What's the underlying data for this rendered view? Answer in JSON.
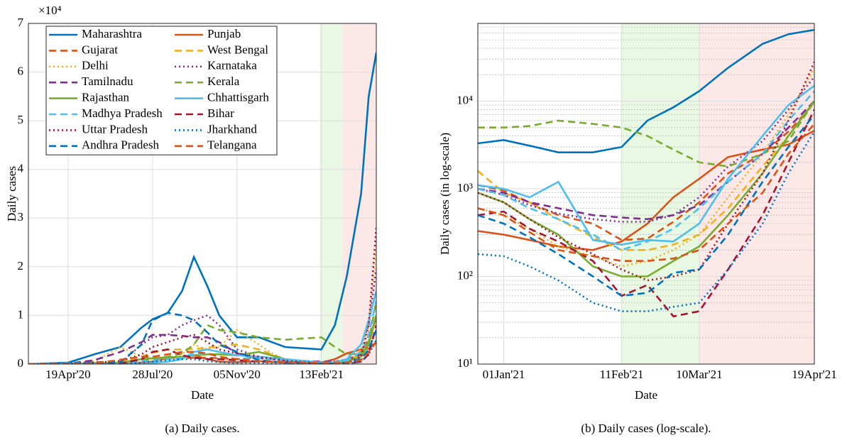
{
  "chart_data": [
    {
      "type": "line",
      "caption": "(a) Daily cases.",
      "x_label": "Date",
      "y_label": "Daily cases",
      "y_multiplier": "×10⁴",
      "x": [
        "2020-03-03",
        "2020-04-19",
        "2020-05-20",
        "2020-06-20",
        "2020-07-15",
        "2020-07-28",
        "2020-08-15",
        "2020-09-01",
        "2020-09-15",
        "2020-10-01",
        "2020-10-15",
        "2020-11-05",
        "2020-12-01",
        "2021-01-01",
        "2021-02-13",
        "2021-03-01",
        "2021-03-15",
        "2021-04-01",
        "2021-04-10",
        "2021-04-19"
      ],
      "xlim": [
        "2020-03-03",
        "2021-04-19"
      ],
      "xticks": [
        {
          "value": "2020-04-19",
          "label": "19Apr'20"
        },
        {
          "value": "2020-07-28",
          "label": "28Jul'20"
        },
        {
          "value": "2020-11-05",
          "label": "05Nov'20"
        },
        {
          "value": "2021-02-13",
          "label": "13Feb'21"
        }
      ],
      "ylim": [
        0,
        7
      ],
      "yticks": [
        0,
        1,
        2,
        3,
        4,
        5,
        6,
        7
      ],
      "grid": true,
      "log_y": false,
      "legend": "upper left",
      "shaded_regions": [
        {
          "start": "2021-02-11",
          "end": "2021-03-10",
          "color": "#e8f8e2"
        },
        {
          "start": "2021-03-10",
          "end": "2021-04-19",
          "color": "#fde8e8"
        }
      ],
      "series": [
        {
          "name": "Maharashtra",
          "color": "#0072BD",
          "dash": "solid",
          "values": [
            0,
            0.03,
            0.2,
            0.35,
            0.75,
            0.92,
            1.05,
            1.5,
            2.2,
            1.6,
            1.0,
            0.55,
            0.55,
            0.35,
            0.3,
            0.8,
            1.8,
            3.5,
            5.5,
            6.4
          ]
        },
        {
          "name": "Punjab",
          "color": "#D95319",
          "dash": "solid",
          "values": [
            0,
            0,
            0.01,
            0.01,
            0.03,
            0.05,
            0.12,
            0.15,
            0.18,
            0.1,
            0.05,
            0.04,
            0.06,
            0.03,
            0.03,
            0.1,
            0.22,
            0.3,
            0.32,
            0.45
          ]
        },
        {
          "name": "Gujarat",
          "color": "#D95319",
          "dash": "dashed",
          "values": [
            0,
            0.02,
            0.04,
            0.05,
            0.09,
            0.11,
            0.11,
            0.12,
            0.13,
            0.13,
            0.12,
            0.1,
            0.14,
            0.07,
            0.03,
            0.04,
            0.08,
            0.25,
            0.5,
            0.95
          ]
        },
        {
          "name": "West Bengal",
          "color": "#EDB120",
          "dash": "dashed",
          "values": [
            0,
            0,
            0.02,
            0.04,
            0.15,
            0.23,
            0.3,
            0.3,
            0.31,
            0.33,
            0.38,
            0.4,
            0.3,
            0.1,
            0.02,
            0.02,
            0.05,
            0.2,
            0.45,
            1.0
          ]
        },
        {
          "name": "Delhi",
          "color": "#EDB120",
          "dash": "dotted",
          "values": [
            0,
            0.01,
            0.06,
            0.35,
            0.15,
            0.1,
            0.12,
            0.2,
            0.4,
            0.3,
            0.35,
            0.7,
            0.4,
            0.05,
            0.02,
            0.02,
            0.04,
            0.3,
            0.8,
            2.4
          ]
        },
        {
          "name": "Karnataka",
          "color": "#7E2F8E",
          "dash": "dotted",
          "values": [
            0,
            0,
            0.01,
            0.02,
            0.4,
            0.55,
            0.6,
            0.8,
            0.9,
            1.0,
            0.8,
            0.3,
            0.15,
            0.08,
            0.04,
            0.05,
            0.1,
            0.4,
            0.8,
            1.95
          ]
        },
        {
          "name": "Tamilnadu",
          "color": "#7E2F8E",
          "dash": "dashed",
          "values": [
            0,
            0.01,
            0.08,
            0.25,
            0.45,
            0.6,
            0.6,
            0.58,
            0.55,
            0.55,
            0.45,
            0.22,
            0.12,
            0.08,
            0.05,
            0.05,
            0.07,
            0.2,
            0.4,
            1.0
          ]
        },
        {
          "name": "Kerala",
          "color": "#77AC30",
          "dash": "dashed",
          "values": [
            0,
            0,
            0.01,
            0.01,
            0.07,
            0.11,
            0.15,
            0.22,
            0.4,
            0.8,
            0.7,
            0.65,
            0.55,
            0.5,
            0.55,
            0.35,
            0.2,
            0.22,
            0.45,
            1.3
          ]
        },
        {
          "name": "Rajasthan",
          "color": "#77AC30",
          "dash": "solid",
          "values": [
            0,
            0.01,
            0.02,
            0.03,
            0.1,
            0.12,
            0.14,
            0.15,
            0.18,
            0.2,
            0.2,
            0.18,
            0.25,
            0.1,
            0.01,
            0.02,
            0.05,
            0.15,
            0.4,
            1.0
          ]
        },
        {
          "name": "Chhattisgarh",
          "color": "#4DBEEE",
          "dash": "solid",
          "values": [
            0,
            0,
            0,
            0.01,
            0.01,
            0.02,
            0.05,
            0.1,
            0.25,
            0.3,
            0.25,
            0.18,
            0.15,
            0.1,
            0.03,
            0.03,
            0.1,
            0.4,
            0.9,
            1.5
          ]
        },
        {
          "name": "Madhya Pradesh",
          "color": "#4DBEEE",
          "dash": "dashed",
          "values": [
            0,
            0.02,
            0.02,
            0.02,
            0.06,
            0.07,
            0.1,
            0.13,
            0.2,
            0.22,
            0.15,
            0.1,
            0.12,
            0.08,
            0.02,
            0.03,
            0.07,
            0.25,
            0.6,
            1.3
          ]
        },
        {
          "name": "Bihar",
          "color": "#A2142F",
          "dash": "dashed",
          "values": [
            0,
            0,
            0.01,
            0.01,
            0.1,
            0.25,
            0.3,
            0.18,
            0.13,
            0.1,
            0.1,
            0.08,
            0.05,
            0.04,
            0.01,
            0.005,
            0.01,
            0.05,
            0.2,
            0.8
          ]
        },
        {
          "name": "Uttar Pradesh",
          "color": "#A2142F",
          "dash": "dotted",
          "values": [
            0,
            0.01,
            0.03,
            0.06,
            0.2,
            0.35,
            0.45,
            0.55,
            0.6,
            0.45,
            0.3,
            0.22,
            0.15,
            0.07,
            0.01,
            0.01,
            0.02,
            0.15,
            0.8,
            2.8
          ]
        },
        {
          "name": "Jharkhand",
          "color": "#0072BD",
          "dash": "dotted",
          "values": [
            0,
            0,
            0,
            0,
            0.03,
            0.05,
            0.08,
            0.1,
            0.1,
            0.06,
            0.04,
            0.02,
            0.02,
            0.01,
            0.004,
            0.005,
            0.01,
            0.05,
            0.2,
            0.5
          ]
        },
        {
          "name": "Andhra Pradesh",
          "color": "#0072BD",
          "dash": "dashed",
          "values": [
            0,
            0.01,
            0.02,
            0.04,
            0.4,
            0.9,
            1.05,
            1.0,
            0.9,
            0.65,
            0.4,
            0.25,
            0.08,
            0.03,
            0.01,
            0.01,
            0.03,
            0.1,
            0.3,
            0.7
          ]
        },
        {
          "name": "Telangana",
          "color": "#D95319",
          "dash": "dashed",
          "values": [
            0,
            0,
            0.01,
            0.09,
            0.15,
            0.15,
            0.2,
            0.25,
            0.25,
            0.22,
            0.15,
            0.1,
            0.06,
            0.04,
            0.02,
            0.02,
            0.03,
            0.08,
            0.25,
            0.45
          ]
        }
      ]
    },
    {
      "type": "line",
      "caption": "(b) Daily cases (log-scale).",
      "x_label": "Date",
      "y_label": "Daily cases (in log-scale)",
      "x": [
        "2020-12-23",
        "2021-01-01",
        "2021-01-10",
        "2021-01-20",
        "2021-02-01",
        "2021-02-11",
        "2021-02-20",
        "2021-03-01",
        "2021-03-10",
        "2021-03-20",
        "2021-04-01",
        "2021-04-10",
        "2021-04-19"
      ],
      "xlim": [
        "2020-12-23",
        "2021-04-19"
      ],
      "xticks": [
        {
          "value": "2021-01-01",
          "label": "01Jan'21"
        },
        {
          "value": "2021-02-11",
          "label": "11Feb'21"
        },
        {
          "value": "2021-03-10",
          "label": "10Mar'21"
        },
        {
          "value": "2021-04-19",
          "label": "19Apr'21"
        }
      ],
      "ylim": [
        10,
        77000
      ],
      "yticks": [
        {
          "value": 10,
          "label": "10¹"
        },
        {
          "value": 100,
          "label": "10²"
        },
        {
          "value": 1000,
          "label": "10³"
        },
        {
          "value": 10000,
          "label": "10⁴"
        }
      ],
      "grid": true,
      "log_y": true,
      "minor_grid": true,
      "shaded_regions": [
        {
          "start": "2021-02-11",
          "end": "2021-03-10",
          "color": "#e8f8e2"
        },
        {
          "start": "2021-03-10",
          "end": "2021-04-19",
          "color": "#fde8e8"
        }
      ],
      "series": [
        {
          "color": "#0072BD",
          "dash": "solid",
          "values": [
            3300,
            3600,
            3100,
            2600,
            2600,
            3000,
            6000,
            8500,
            13000,
            24000,
            45000,
            58000,
            65000
          ]
        },
        {
          "color": "#D95319",
          "dash": "solid",
          "values": [
            330,
            300,
            260,
            220,
            200,
            250,
            400,
            800,
            1300,
            2300,
            2800,
            3200,
            4600
          ]
        },
        {
          "color": "#D95319",
          "dash": "dashed",
          "values": [
            1100,
            950,
            700,
            500,
            400,
            260,
            270,
            420,
            700,
            1500,
            2500,
            4500,
            9500
          ]
        },
        {
          "color": "#EDB120",
          "dash": "dashed",
          "values": [
            1600,
            900,
            700,
            450,
            280,
            200,
            200,
            230,
            300,
            600,
            1800,
            4000,
            10000
          ]
        },
        {
          "color": "#EDB120",
          "dash": "dotted",
          "values": [
            600,
            500,
            350,
            220,
            170,
            130,
            150,
            200,
            300,
            800,
            2500,
            7000,
            24000
          ]
        },
        {
          "color": "#7E2F8E",
          "dash": "dotted",
          "values": [
            1000,
            850,
            650,
            520,
            450,
            420,
            420,
            500,
            800,
            1800,
            3500,
            8000,
            19000
          ]
        },
        {
          "color": "#7E2F8E",
          "dash": "dashed",
          "values": [
            1000,
            900,
            700,
            600,
            500,
            470,
            450,
            500,
            650,
            1200,
            2500,
            5000,
            10000
          ]
        },
        {
          "color": "#77AC30",
          "dash": "dashed",
          "values": [
            5000,
            5000,
            5200,
            6000,
            5500,
            5000,
            4000,
            2800,
            2000,
            1800,
            2500,
            3500,
            10000
          ]
        },
        {
          "color": "#77AC30",
          "dash": "solid",
          "values": [
            900,
            700,
            450,
            300,
            130,
            100,
            100,
            150,
            220,
            500,
            1500,
            4000,
            10000
          ]
        },
        {
          "color": "#4DBEEE",
          "dash": "solid",
          "values": [
            1100,
            1000,
            800,
            1200,
            260,
            230,
            260,
            250,
            400,
            1300,
            4000,
            9000,
            15000
          ]
        },
        {
          "color": "#4DBEEE",
          "dash": "dashed",
          "values": [
            1000,
            850,
            600,
            450,
            300,
            200,
            250,
            350,
            600,
            1200,
            2500,
            6000,
            13000
          ]
        },
        {
          "color": "#A2142F",
          "dash": "dashed",
          "values": [
            500,
            550,
            350,
            250,
            150,
            60,
            80,
            35,
            40,
            120,
            500,
            2000,
            8000
          ]
        },
        {
          "color": "#A2142F",
          "dash": "dotted",
          "values": [
            900,
            700,
            450,
            280,
            180,
            120,
            90,
            100,
            120,
            400,
            1500,
            6000,
            28000
          ]
        },
        {
          "color": "#0072BD",
          "dash": "dotted",
          "values": [
            180,
            170,
            130,
            90,
            50,
            40,
            40,
            45,
            50,
            120,
            400,
            1500,
            4500
          ]
        },
        {
          "color": "#0072BD",
          "dash": "dashed",
          "values": [
            500,
            400,
            280,
            180,
            100,
            60,
            65,
            110,
            120,
            300,
            1200,
            3000,
            7000
          ]
        },
        {
          "color": "#D95319",
          "dash": "dashed",
          "values": [
            600,
            500,
            320,
            200,
            170,
            150,
            150,
            160,
            200,
            400,
            900,
            2500,
            5500
          ]
        }
      ]
    }
  ]
}
